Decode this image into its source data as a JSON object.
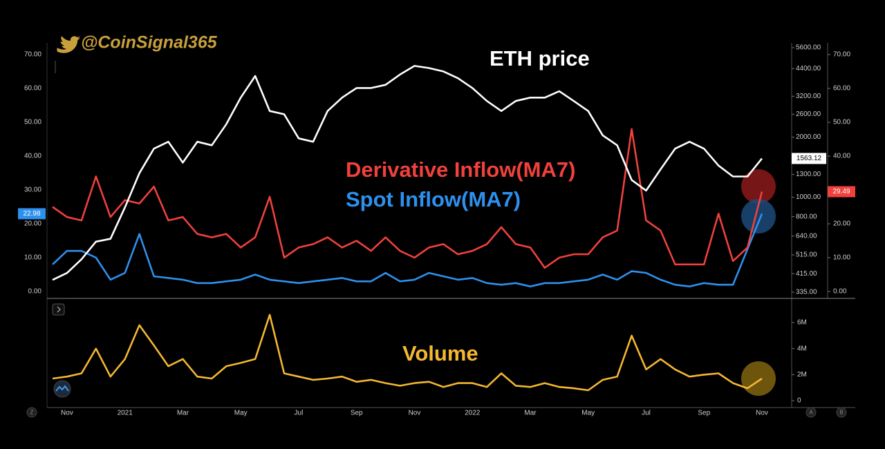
{
  "watermark": "@CoinSignal365",
  "controls": [
    "Z",
    "A",
    "B"
  ],
  "chart_data": {
    "type": "line",
    "categories": [
      null,
      "Nov",
      null,
      null,
      null,
      "2021",
      null,
      null,
      null,
      "Mar",
      null,
      null,
      null,
      "May",
      null,
      null,
      null,
      "Jul",
      null,
      null,
      null,
      "Sep",
      null,
      null,
      null,
      "Nov",
      null,
      null,
      null,
      "2022",
      null,
      null,
      null,
      "Mar",
      null,
      null,
      null,
      "May",
      null,
      null,
      null,
      "Jul",
      null,
      null,
      null,
      "Sep",
      null,
      null,
      null,
      "Nov"
    ],
    "ylim": [
      -2.04,
      73.47
    ],
    "yticks": [
      {
        "value": 0,
        "label": "0.00"
      },
      {
        "value": 10,
        "label": "10.00"
      },
      {
        "value": 20,
        "label": "20.00"
      },
      {
        "value": 30,
        "label": "30.00"
      },
      {
        "value": 40,
        "label": "40.00"
      },
      {
        "value": 50,
        "label": "50.00"
      },
      {
        "value": 60,
        "label": "60.00"
      },
      {
        "value": 70,
        "label": "70.00"
      }
    ],
    "y2lim": [
      312,
      5920
    ],
    "y2scale": "log",
    "y2ticks": [
      {
        "value": 335,
        "label": "335.00"
      },
      {
        "value": 415,
        "label": "415.00"
      },
      {
        "value": 515,
        "label": "515.00"
      },
      {
        "value": 640,
        "label": "640.00"
      },
      {
        "value": 800,
        "label": "800.00"
      },
      {
        "value": 1000,
        "label": "1000.00"
      },
      {
        "value": 1300,
        "label": "1300.00"
      },
      {
        "value": 2000,
        "label": "2000.00"
      },
      {
        "value": 2600,
        "label": "2600.00"
      },
      {
        "value": 3200,
        "label": "3200.00"
      },
      {
        "value": 4400,
        "label": "4400.00"
      },
      {
        "value": 5600,
        "label": "5600.00"
      }
    ],
    "y3lim": [
      -530000,
      7700000
    ],
    "y3ticks": [
      0,
      {
        "value": 2000000,
        "label": "2M"
      },
      {
        "value": 4000000,
        "label": "4M"
      },
      {
        "value": 6000000,
        "label": "6M"
      }
    ],
    "grid": false,
    "series": [
      {
        "name": "ETH price",
        "color": "#ffffff",
        "axis": "y2",
        "values": [
          386,
          418,
          490,
          600,
          620,
          890,
          1320,
          1750,
          1895,
          1490,
          1895,
          1820,
          2320,
          3150,
          4040,
          2700,
          2600,
          1970,
          1895,
          2700,
          3150,
          3520,
          3520,
          3650,
          4110,
          4540,
          4430,
          4260,
          3940,
          3520,
          3030,
          2700,
          3030,
          3150,
          3150,
          3390,
          3030,
          2700,
          2040,
          1820,
          1220,
          1080,
          1380,
          1750,
          1895,
          1750,
          1440,
          1270,
          1270,
          1563.12
        ]
      },
      {
        "name": "Derivative Inflow(MA7)",
        "color": "#f0413c",
        "values": [
          25,
          22,
          21,
          34,
          22,
          27,
          26,
          31,
          21,
          22,
          17,
          16,
          17,
          13,
          16,
          28,
          10,
          13,
          14,
          16,
          13,
          15,
          12,
          16,
          12,
          10,
          13,
          14,
          11,
          12,
          14,
          19,
          14,
          13,
          7,
          10,
          11,
          11,
          16,
          18,
          48,
          21,
          18,
          8,
          8,
          8,
          23,
          9,
          13,
          29.49
        ]
      },
      {
        "name": "Spot Inflow(MA7)",
        "color": "#2e90ee",
        "values": [
          8,
          12,
          12,
          10,
          3.5,
          5.5,
          17,
          4.5,
          4,
          3.5,
          2.5,
          2.5,
          3,
          3.5,
          5,
          3.5,
          3,
          2.5,
          3,
          3.5,
          4,
          3,
          3,
          5.5,
          3,
          3.5,
          5.5,
          4.5,
          3.5,
          4,
          2.5,
          2,
          2.5,
          1.5,
          2.5,
          2.5,
          3,
          3.5,
          5,
          3.5,
          6,
          5.5,
          3.5,
          2,
          1.5,
          2.5,
          2,
          2,
          12.5,
          22.98
        ]
      },
      {
        "name": "Volume",
        "color": "#f5b731",
        "axis": "y3",
        "values": [
          1700000,
          1850000,
          2100000,
          4000000,
          1850000,
          3200000,
          5800000,
          4250000,
          2650000,
          3200000,
          1850000,
          1700000,
          2650000,
          2900000,
          3200000,
          6600000,
          2100000,
          1850000,
          1600000,
          1700000,
          1850000,
          1450000,
          1600000,
          1350000,
          1150000,
          1350000,
          1450000,
          1050000,
          1350000,
          1350000,
          1050000,
          2100000,
          1150000,
          1050000,
          1350000,
          1050000,
          950000,
          800000,
          1600000,
          1850000,
          5000000,
          2400000,
          3200000,
          2400000,
          1850000,
          2000000,
          2100000,
          1350000,
          950000,
          1700000
        ]
      }
    ]
  }
}
